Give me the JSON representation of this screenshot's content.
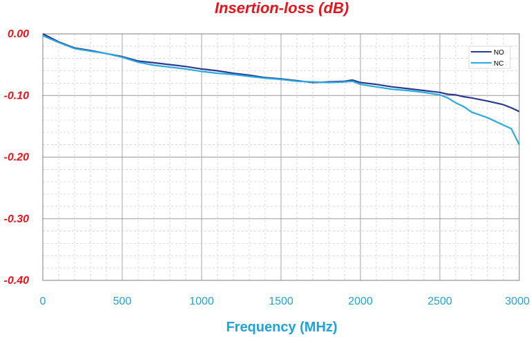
{
  "chart_data": {
    "type": "line",
    "title": "Insertion-loss (dB)",
    "xlabel": "Frequency (MHz)",
    "ylabel": "",
    "xlim": [
      0,
      3000
    ],
    "ylim": [
      -0.4,
      0.0
    ],
    "x_ticks": [
      "0",
      "500",
      "1000",
      "1500",
      "2000",
      "2500",
      "3000"
    ],
    "x_tick_values": [
      0,
      500,
      1000,
      1500,
      2000,
      2500,
      3000
    ],
    "y_ticks": [
      "0.00",
      "-0.10",
      "-0.20",
      "-0.30",
      "-0.40"
    ],
    "y_tick_values": [
      0.0,
      -0.1,
      -0.2,
      -0.3,
      -0.4
    ],
    "grid": true,
    "legend_position": "top-right",
    "colors": {
      "title": "#e8141c",
      "y_ticks": "#e8141c",
      "x_ticks": "#1fa3d8",
      "xlabel": "#1fa3d8",
      "NO": "#2b3a8f",
      "NC": "#29abe2"
    },
    "x": [
      0,
      100,
      150,
      200,
      300,
      400,
      500,
      600,
      700,
      800,
      900,
      1000,
      1100,
      1200,
      1300,
      1400,
      1500,
      1600,
      1700,
      1800,
      1900,
      1950,
      2000,
      2100,
      2200,
      2300,
      2400,
      2500,
      2550,
      2600,
      2650,
      2700,
      2800,
      2900,
      2950,
      3000
    ],
    "series": [
      {
        "name": "NO",
        "values": [
          0.0,
          -0.013,
          -0.018,
          -0.023,
          -0.027,
          -0.032,
          -0.037,
          -0.044,
          -0.047,
          -0.05,
          -0.053,
          -0.057,
          -0.06,
          -0.064,
          -0.067,
          -0.071,
          -0.073,
          -0.076,
          -0.079,
          -0.078,
          -0.077,
          -0.075,
          -0.079,
          -0.082,
          -0.086,
          -0.089,
          -0.092,
          -0.095,
          -0.098,
          -0.099,
          -0.102,
          -0.104,
          -0.109,
          -0.115,
          -0.12,
          -0.126
        ]
      },
      {
        "name": "NC",
        "values": [
          -0.003,
          -0.014,
          -0.019,
          -0.024,
          -0.028,
          -0.032,
          -0.038,
          -0.046,
          -0.051,
          -0.054,
          -0.057,
          -0.061,
          -0.064,
          -0.066,
          -0.069,
          -0.072,
          -0.074,
          -0.077,
          -0.078,
          -0.079,
          -0.078,
          -0.077,
          -0.082,
          -0.086,
          -0.09,
          -0.092,
          -0.095,
          -0.099,
          -0.104,
          -0.112,
          -0.118,
          -0.127,
          -0.136,
          -0.148,
          -0.154,
          -0.18
        ]
      }
    ]
  }
}
